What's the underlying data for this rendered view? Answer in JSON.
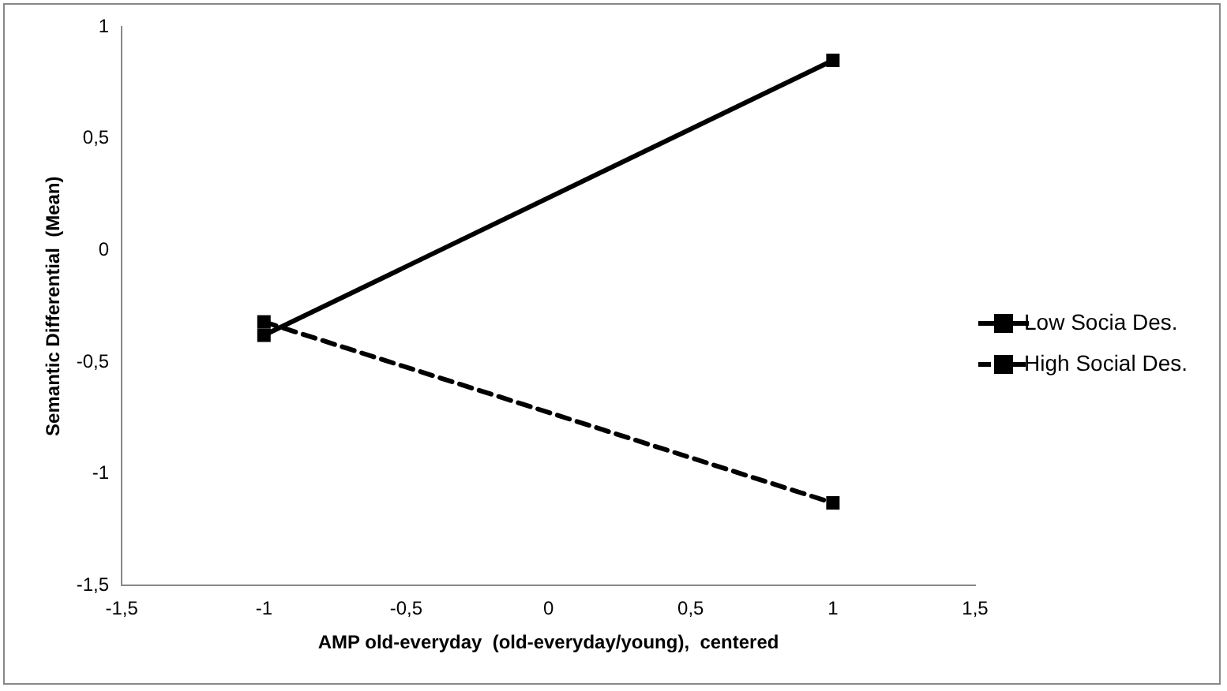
{
  "chart_data": {
    "type": "line",
    "xlabel": "AMP old-everyday  (old-everyday/young),  centered",
    "ylabel": "Semantic Differential  (Mean)",
    "x": [
      -1,
      1
    ],
    "series": [
      {
        "name": "Low Socia Des.",
        "color": "#000000",
        "values": [
          -0.38,
          0.85
        ],
        "line_style": "solid"
      },
      {
        "name": "High Social Des.",
        "color": "#000000",
        "values": [
          -0.32,
          -1.13
        ],
        "line_style": "dashed"
      }
    ],
    "xlim": [
      -1.5,
      1.5
    ],
    "xticks": [
      {
        "value": -1.5,
        "label": "-1,5"
      },
      {
        "value": -1,
        "label": "-1"
      },
      {
        "value": -0.5,
        "label": "-0,5"
      },
      {
        "value": 0,
        "label": "0"
      },
      {
        "value": 0.5,
        "label": "0,5"
      },
      {
        "value": 1,
        "label": "1"
      },
      {
        "value": 1.5,
        "label": "1,5"
      }
    ],
    "ylim": [
      -1.5,
      1
    ],
    "yticks": [
      {
        "value": -1.5,
        "label": "-1,5"
      },
      {
        "value": -1,
        "label": "-1"
      },
      {
        "value": -0.5,
        "label": "-0,5"
      },
      {
        "value": 0,
        "label": "0"
      },
      {
        "value": 0.5,
        "label": "0,5"
      },
      {
        "value": 1,
        "label": "1"
      }
    ],
    "grid": false,
    "legend": "right",
    "marker": "square"
  }
}
